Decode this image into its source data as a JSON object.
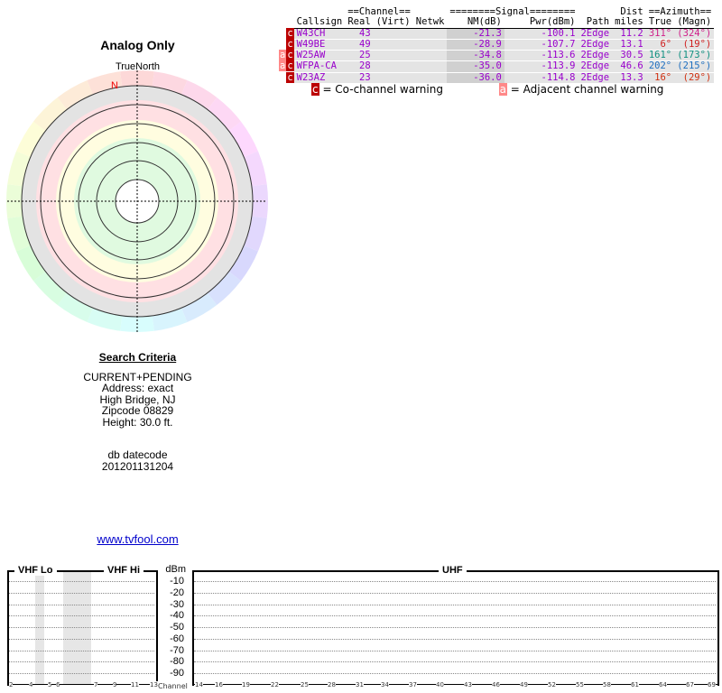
{
  "title": "Analog Only",
  "compass": {
    "label": "TrueNorth",
    "north_marker": "N"
  },
  "table": {
    "group_headers": {
      "channel": "==Channel==",
      "signal": "========Signal========",
      "dist": "Dist",
      "azimuth": "==Azimuth=="
    },
    "headers": [
      "Callsign",
      "Real",
      "(Virt)",
      "Netwk",
      "NM(dB)",
      "Pwr(dBm)",
      "Path",
      "miles",
      "True",
      "(Magn)"
    ],
    "rows": [
      {
        "flags": [
          "c"
        ],
        "callsign": "W43CH",
        "real": "43",
        "virt": "",
        "netwk": "",
        "nm": "-21.3",
        "pwr": "-100.1",
        "path": "2Edge",
        "dist": "11.2",
        "true": "311°",
        "magn": "(324°)",
        "az_color": "#d0208a"
      },
      {
        "flags": [
          "c"
        ],
        "callsign": "W49BE",
        "real": "49",
        "virt": "",
        "netwk": "",
        "nm": "-28.9",
        "pwr": "-107.7",
        "path": "2Edge",
        "dist": "13.1",
        "true": "6°",
        "magn": "(19°)",
        "az_color": "#d02020"
      },
      {
        "flags": [
          "a",
          "c"
        ],
        "callsign": "W25AW",
        "real": "25",
        "virt": "",
        "netwk": "",
        "nm": "-34.8",
        "pwr": "-113.6",
        "path": "2Edge",
        "dist": "30.5",
        "true": "161°",
        "magn": "(173°)",
        "az_color": "#109080"
      },
      {
        "flags": [
          "a",
          "c"
        ],
        "callsign": "WFPA-CA",
        "real": "28",
        "virt": "",
        "netwk": "",
        "nm": "-35.0",
        "pwr": "-113.9",
        "path": "2Edge",
        "dist": "46.6",
        "true": "202°",
        "magn": "(215°)",
        "az_color": "#2070c0"
      },
      {
        "flags": [
          "c"
        ],
        "callsign": "W23AZ",
        "real": "23",
        "virt": "",
        "netwk": "",
        "nm": "-36.0",
        "pwr": "-114.8",
        "path": "2Edge",
        "dist": "13.3",
        "true": "16°",
        "magn": "(29°)",
        "az_color": "#d03010"
      }
    ]
  },
  "legend": {
    "co_icon": "c",
    "co_text": "= Co-channel warning",
    "adj_icon": "a",
    "adj_text": "= Adjacent channel warning"
  },
  "criteria": {
    "heading": "Search Criteria",
    "lines": [
      "CURRENT+PENDING",
      "Address: exact",
      "High Bridge, NJ",
      "Zipcode 08829",
      "Height: 30.0 ft."
    ],
    "db_label": "db datecode",
    "db_value": "201201131204"
  },
  "link": "www.tvfool.com",
  "spectrum": {
    "vhf_lo": "VHF Lo",
    "vhf_hi": "VHF Hi",
    "uhf": "UHF",
    "unit": "dBm",
    "channel_label": "Channel",
    "dbm_ticks": [
      "-10",
      "-20",
      "-30",
      "-40",
      "-50",
      "-60",
      "-70",
      "-80",
      "-90"
    ],
    "vhf_channels": [
      "2",
      "4",
      "5",
      "6",
      "7",
      "9",
      "11",
      "13"
    ],
    "uhf_channels": [
      "14",
      "16",
      "19",
      "22",
      "25",
      "28",
      "31",
      "34",
      "37",
      "40",
      "43",
      "46",
      "49",
      "52",
      "55",
      "58",
      "61",
      "64",
      "67",
      "69"
    ]
  }
}
